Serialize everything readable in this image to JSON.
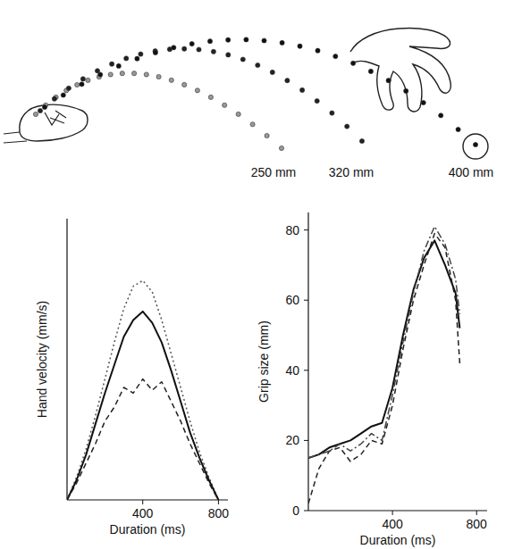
{
  "diagram": {
    "labels": [
      "250 mm",
      "320 mm",
      "400 mm"
    ]
  },
  "chart_data": [
    {
      "type": "line",
      "y_label": "Hand velocity (mm/s)",
      "x_label": "Duration (ms)",
      "x": [
        0,
        50,
        100,
        150,
        200,
        250,
        300,
        350,
        400,
        450,
        500,
        550,
        600,
        650,
        700,
        750,
        800
      ],
      "xlim": [
        0,
        850
      ],
      "xticks": [
        400,
        800
      ],
      "ylim": [
        0,
        1000
      ],
      "tick_labels": "x",
      "grid": false,
      "series": [
        {
          "color": "#555555",
          "line_style": "dotted",
          "values": [
            0,
            80,
            180,
            300,
            430,
            560,
            680,
            760,
            780,
            740,
            640,
            520,
            400,
            280,
            170,
            80,
            0
          ]
        },
        {
          "color": "#111111",
          "line_style": "solid",
          "values": [
            0,
            70,
            160,
            270,
            380,
            480,
            580,
            640,
            670,
            630,
            560,
            460,
            350,
            240,
            150,
            70,
            0
          ]
        },
        {
          "color": "#222222",
          "line_style": "dashed",
          "values": [
            0,
            60,
            130,
            200,
            280,
            330,
            400,
            380,
            430,
            390,
            420,
            350,
            280,
            200,
            130,
            60,
            0
          ]
        }
      ]
    },
    {
      "type": "line",
      "y_label": "Grip size (mm)",
      "x_label": "Duration (ms)",
      "x": [
        0,
        50,
        100,
        150,
        200,
        250,
        300,
        350,
        400,
        450,
        500,
        550,
        600,
        650,
        700,
        720
      ],
      "xlim": [
        0,
        850
      ],
      "xticks": [
        400,
        800
      ],
      "ylim": [
        0,
        85
      ],
      "yticks": [
        0,
        20,
        40,
        60,
        80
      ],
      "grid": false,
      "series": [
        {
          "color": "#111111",
          "line_style": "solid",
          "values": [
            15,
            16,
            18,
            19,
            20,
            22,
            24,
            25,
            35,
            50,
            63,
            72,
            77,
            70,
            62,
            52
          ]
        },
        {
          "color": "#444444",
          "line_style": "dashdot",
          "values": [
            15,
            16,
            17,
            19,
            17,
            19,
            22,
            20,
            33,
            48,
            62,
            74,
            81,
            76,
            66,
            56
          ]
        },
        {
          "color": "#222222",
          "line_style": "dashed",
          "values": [
            2,
            12,
            17,
            18,
            14,
            16,
            20,
            19,
            30,
            46,
            60,
            70,
            79,
            75,
            60,
            42
          ]
        }
      ]
    }
  ]
}
